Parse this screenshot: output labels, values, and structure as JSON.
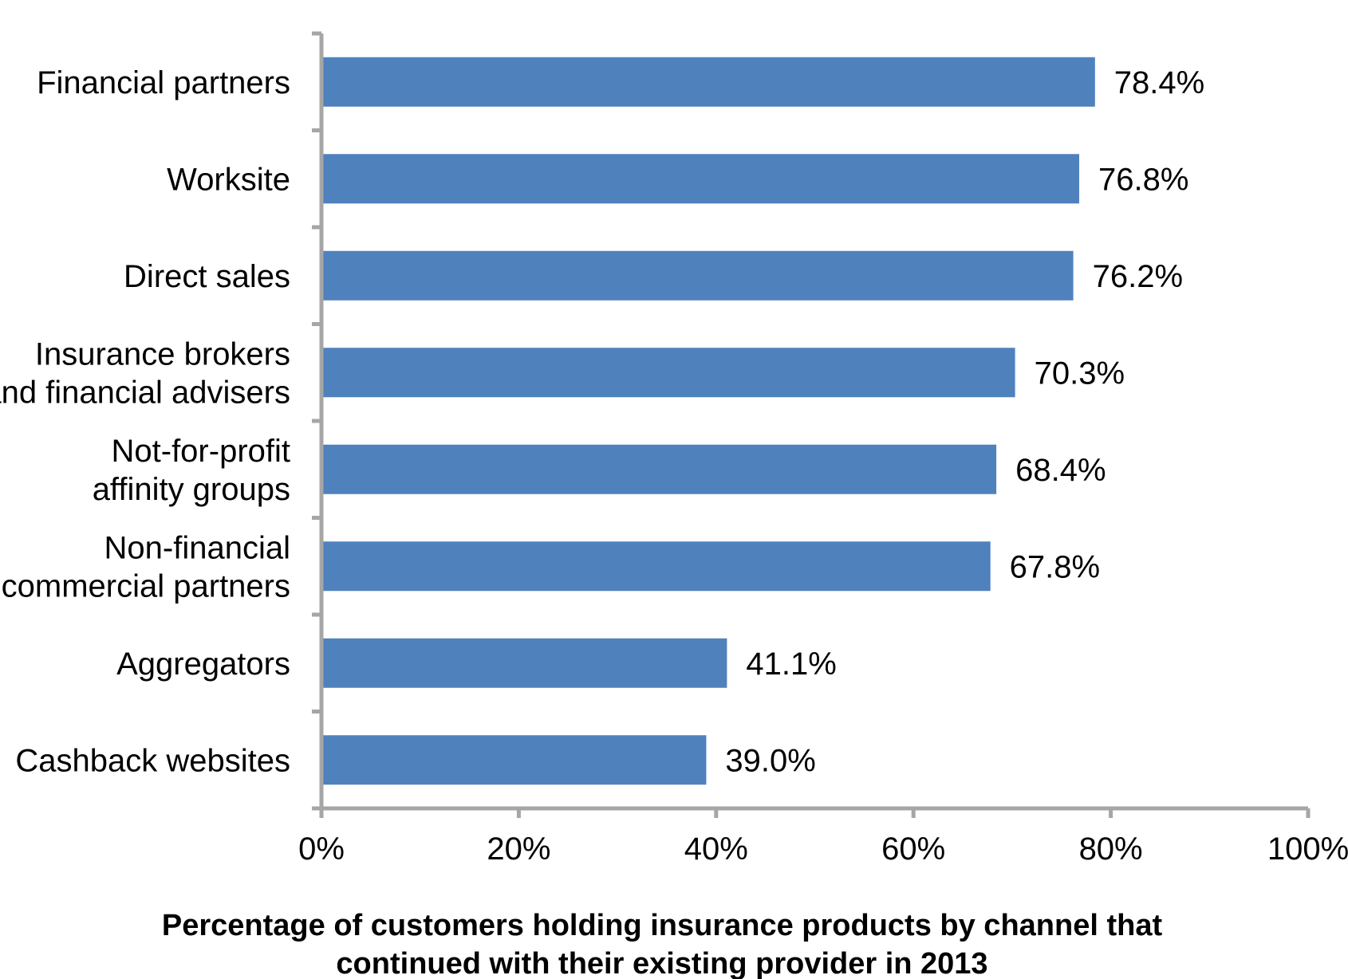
{
  "chart_data": {
    "type": "bar",
    "orientation": "horizontal",
    "categories": [
      [
        "Financial partners"
      ],
      [
        "Worksite"
      ],
      [
        "Direct sales"
      ],
      [
        "Insurance brokers",
        "and financial advisers"
      ],
      [
        "Not-for-profit",
        "affinity groups"
      ],
      [
        "Non-financial",
        "commercial partners"
      ],
      [
        "Aggregators"
      ],
      [
        "Cashback websites"
      ]
    ],
    "values": [
      78.4,
      76.8,
      76.2,
      70.3,
      68.4,
      67.8,
      41.1,
      39.0
    ],
    "value_labels": [
      "78.4%",
      "76.8%",
      "76.2%",
      "70.3%",
      "68.4%",
      "67.8%",
      "41.1%",
      "39.0%"
    ],
    "xticks": [
      0,
      20,
      40,
      60,
      80,
      100
    ],
    "xtick_labels": [
      "0%",
      "20%",
      "40%",
      "60%",
      "80%",
      "100%"
    ],
    "xlim": [
      0,
      100
    ],
    "xlabel": [
      "Percentage of customers holding insurance products by channel that",
      "continued with their existing provider in 2013"
    ],
    "title": "",
    "grid": false,
    "legend": "none",
    "colors": {
      "bar": "#4f81bd",
      "axis": "#a6a6a6"
    }
  }
}
